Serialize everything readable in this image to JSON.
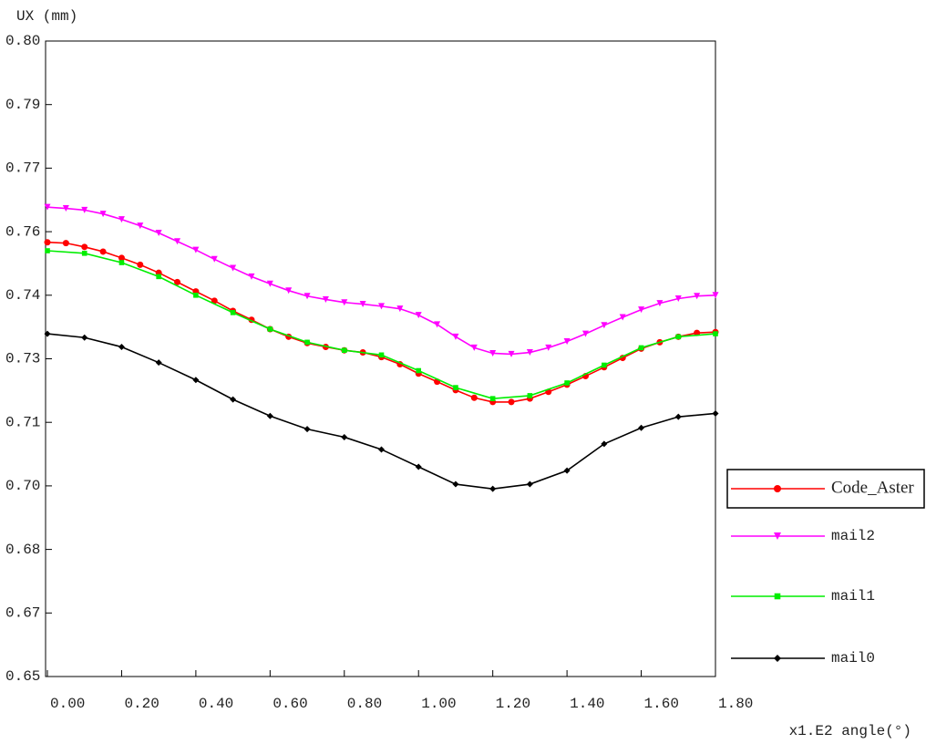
{
  "chart_data": {
    "type": "line",
    "ylabel": "UX (mm)",
    "xlabel": "x1.E2 angle(°)",
    "xlim": [
      0,
      1.8
    ],
    "ylim": [
      0.65,
      0.8
    ],
    "xticks": [
      {
        "value": 0,
        "label": "0.00"
      },
      {
        "value": 0.2,
        "label": "0.20"
      },
      {
        "value": 0.4,
        "label": "0.40"
      },
      {
        "value": 0.6,
        "label": "0.60"
      },
      {
        "value": 0.8,
        "label": "0.80"
      },
      {
        "value": 1.0,
        "label": "1.00"
      },
      {
        "value": 1.2,
        "label": "1.20"
      },
      {
        "value": 1.4,
        "label": "1.40"
      },
      {
        "value": 1.6,
        "label": "1.60"
      },
      {
        "value": 1.8,
        "label": "1.80"
      }
    ],
    "yticks": [
      {
        "value": 0.65,
        "label": "0.65"
      },
      {
        "value": 0.665,
        "label": "0.67"
      },
      {
        "value": 0.68,
        "label": "0.68"
      },
      {
        "value": 0.695,
        "label": "0.70"
      },
      {
        "value": 0.71,
        "label": "0.71"
      },
      {
        "value": 0.725,
        "label": "0.73"
      },
      {
        "value": 0.74,
        "label": "0.74"
      },
      {
        "value": 0.755,
        "label": "0.76"
      },
      {
        "value": 0.77,
        "label": "0.77"
      },
      {
        "value": 0.785,
        "label": "0.79"
      },
      {
        "value": 0.8,
        "label": "0.80"
      }
    ],
    "grid": false,
    "legend": "right",
    "series": [
      {
        "name": "Code_Aster",
        "color": "#ff0000",
        "marker": "circle",
        "x": [
          0,
          0.05,
          0.1,
          0.15,
          0.2,
          0.25,
          0.3,
          0.35,
          0.4,
          0.45,
          0.5,
          0.55,
          0.6,
          0.65,
          0.7,
          0.75,
          0.8,
          0.85,
          0.9,
          0.95,
          1.0,
          1.05,
          1.1,
          1.15,
          1.2,
          1.25,
          1.3,
          1.35,
          1.4,
          1.45,
          1.5,
          1.55,
          1.6,
          1.65,
          1.7,
          1.75,
          1.8
        ],
        "values": [
          0.7525,
          0.7523,
          0.7514,
          0.7503,
          0.7488,
          0.7472,
          0.7453,
          0.7431,
          0.7409,
          0.7387,
          0.7363,
          0.7342,
          0.732,
          0.7302,
          0.7287,
          0.7278,
          0.727,
          0.7265,
          0.7254,
          0.7237,
          0.7215,
          0.7196,
          0.7176,
          0.7158,
          0.7148,
          0.7148,
          0.7156,
          0.7172,
          0.7189,
          0.7209,
          0.723,
          0.7252,
          0.7274,
          0.7289,
          0.7302,
          0.7311,
          0.7313
        ]
      },
      {
        "name": "mail2",
        "color": "#ff00ff",
        "marker": "triangle-down",
        "x": [
          0,
          0.05,
          0.1,
          0.15,
          0.2,
          0.25,
          0.3,
          0.35,
          0.4,
          0.45,
          0.5,
          0.55,
          0.6,
          0.65,
          0.7,
          0.75,
          0.8,
          0.85,
          0.9,
          0.95,
          1.0,
          1.05,
          1.1,
          1.15,
          1.2,
          1.25,
          1.3,
          1.35,
          1.4,
          1.45,
          1.5,
          1.55,
          1.6,
          1.65,
          1.7,
          1.75,
          1.8
        ],
        "values": [
          0.7608,
          0.7605,
          0.7601,
          0.7592,
          0.7579,
          0.7564,
          0.7547,
          0.7527,
          0.7507,
          0.7485,
          0.7464,
          0.7444,
          0.7427,
          0.7411,
          0.7398,
          0.739,
          0.7383,
          0.7379,
          0.7374,
          0.7368,
          0.7353,
          0.7331,
          0.7302,
          0.7276,
          0.7263,
          0.7261,
          0.7265,
          0.7276,
          0.7291,
          0.7309,
          0.7329,
          0.7348,
          0.7366,
          0.7381,
          0.7392,
          0.7398,
          0.74
        ]
      },
      {
        "name": "mail1",
        "color": "#00ee00",
        "marker": "square",
        "x": [
          0,
          0.1,
          0.2,
          0.3,
          0.4,
          0.5,
          0.6,
          0.7,
          0.8,
          0.9,
          1.0,
          1.1,
          1.2,
          1.3,
          1.4,
          1.5,
          1.6,
          1.7,
          1.8
        ],
        "values": [
          0.7505,
          0.7499,
          0.7477,
          0.7444,
          0.74,
          0.7359,
          0.732,
          0.7289,
          0.727,
          0.7259,
          0.7222,
          0.7182,
          0.7156,
          0.7163,
          0.7193,
          0.7235,
          0.7276,
          0.7302,
          0.7309
        ]
      },
      {
        "name": "mail0",
        "color": "#000000",
        "marker": "diamond",
        "x": [
          0,
          0.1,
          0.2,
          0.3,
          0.4,
          0.5,
          0.6,
          0.7,
          0.8,
          0.9,
          1.0,
          1.1,
          1.2,
          1.3,
          1.4,
          1.5,
          1.6,
          1.7,
          1.8
        ],
        "values": [
          0.7309,
          0.73,
          0.7278,
          0.7241,
          0.72,
          0.7154,
          0.7115,
          0.7084,
          0.7065,
          0.7036,
          0.6995,
          0.6954,
          0.6943,
          0.6954,
          0.6986,
          0.7049,
          0.7087,
          0.7113,
          0.7121
        ]
      }
    ]
  }
}
